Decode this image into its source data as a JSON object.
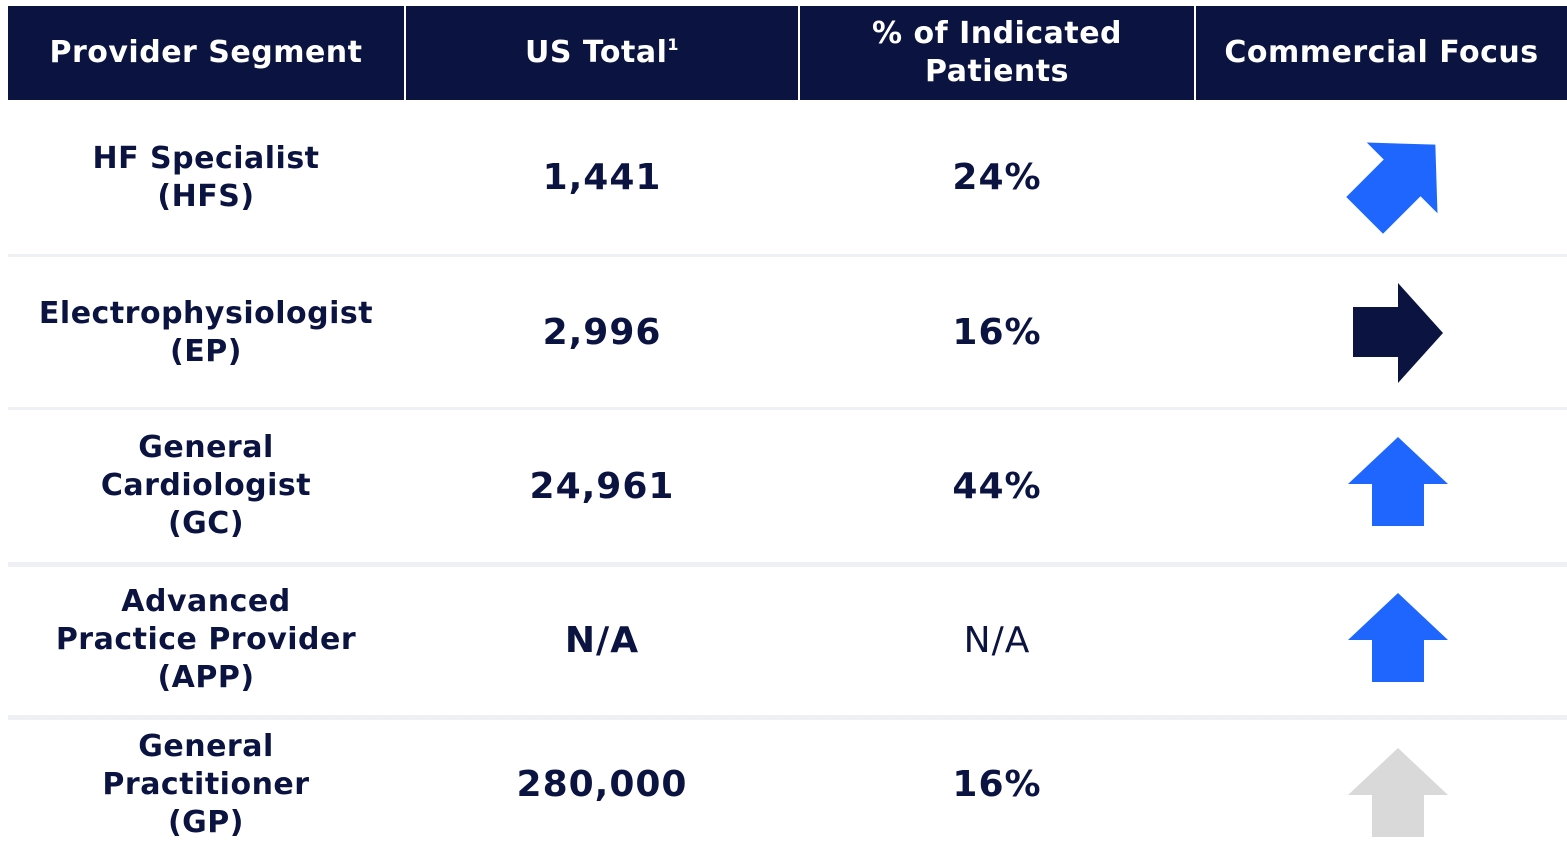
{
  "header": {
    "segment": "Provider Segment",
    "total": "US Total",
    "total_note": "1",
    "pct": "% of Indicated Patients",
    "focus": "Commercial Focus"
  },
  "rows": [
    {
      "segment": [
        "HF Specialist",
        "(HFS)"
      ],
      "total": "1,441",
      "pct": "24%"
    },
    {
      "segment": [
        "Electrophysiologist",
        "(EP)"
      ],
      "total": "2,996",
      "pct": "16%"
    },
    {
      "segment": [
        "General",
        "Cardiologist",
        "(GC)"
      ],
      "total": "24,961",
      "pct": "44%"
    },
    {
      "segment": [
        "Advanced",
        "Practice Provider",
        "(APP)"
      ],
      "total": "N/A",
      "pct": "N/A"
    },
    {
      "segment": [
        "General",
        "Practitioner",
        "(GP)"
      ],
      "total": "280,000",
      "pct": "16%"
    }
  ]
}
